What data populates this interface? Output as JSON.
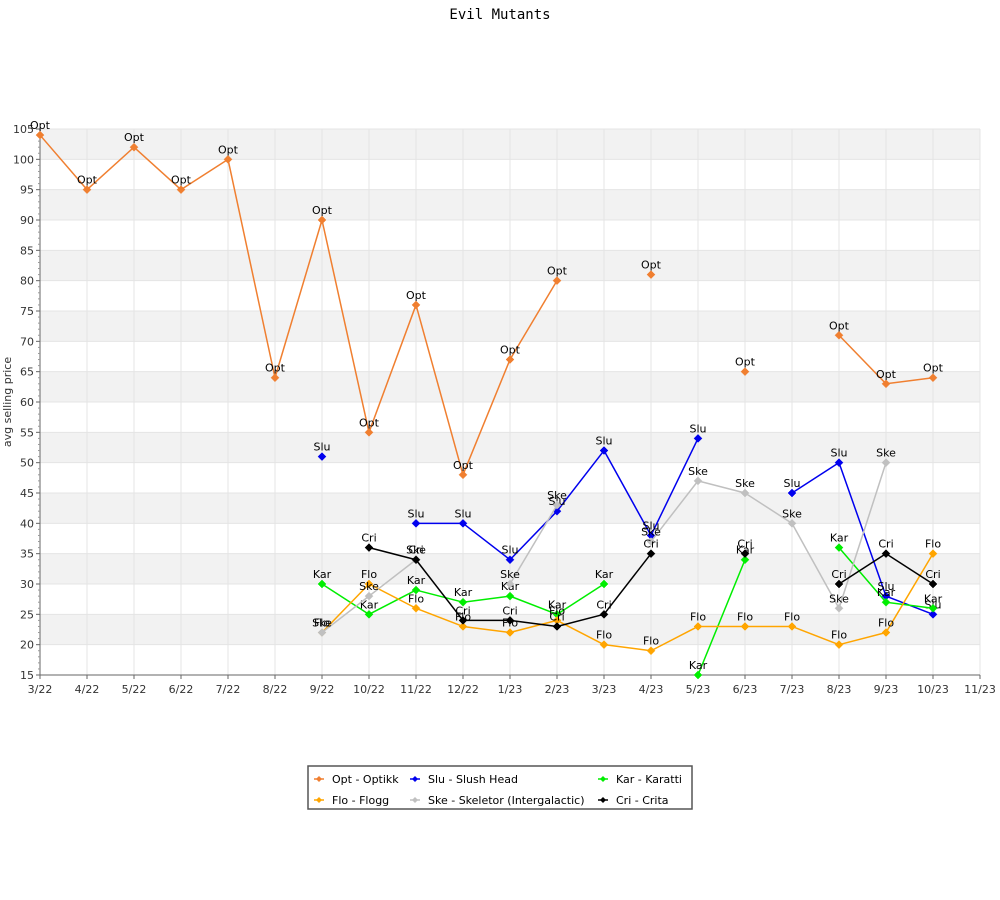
{
  "chart_data": {
    "type": "line",
    "title": "Evil Mutants",
    "xlabel": "",
    "ylabel": "avg selling price",
    "ylim": [
      15,
      105
    ],
    "ytick_step": 5,
    "grid": true,
    "legend_position": "bottom-center",
    "categories": [
      "3/22",
      "4/22",
      "5/22",
      "6/22",
      "7/22",
      "8/22",
      "9/22",
      "10/22",
      "11/22",
      "12/22",
      "1/23",
      "2/23",
      "3/23",
      "4/23",
      "5/23",
      "6/23",
      "7/23",
      "8/23",
      "9/23",
      "10/23",
      "11/23"
    ],
    "series": [
      {
        "name": "Opt - Optikk",
        "short": "Opt",
        "color": "#f07f30",
        "values": [
          104,
          95,
          102,
          95,
          100,
          64,
          90,
          55,
          76,
          48,
          67,
          80,
          null,
          81,
          null,
          65,
          null,
          71,
          63,
          64,
          null
        ]
      },
      {
        "name": "Slu - Slush Head",
        "short": "Slu",
        "color": "#0000ee",
        "values": [
          null,
          null,
          null,
          null,
          null,
          null,
          51,
          null,
          40,
          40,
          34,
          42,
          52,
          38,
          54,
          null,
          45,
          50,
          28,
          25,
          null
        ]
      },
      {
        "name": "Kar - Karatti",
        "short": "Kar",
        "color": "#00ee00",
        "values": [
          null,
          null,
          null,
          null,
          null,
          null,
          30,
          25,
          29,
          27,
          28,
          25,
          30,
          null,
          15,
          34,
          null,
          36,
          27,
          26,
          null
        ]
      },
      {
        "name": "Flo - Flogg",
        "short": "Flo",
        "color": "#ffa500",
        "values": [
          null,
          null,
          null,
          null,
          null,
          null,
          22,
          30,
          26,
          23,
          22,
          24,
          20,
          19,
          23,
          23,
          23,
          20,
          22,
          35,
          null
        ]
      },
      {
        "name": "Ske - Skeletor (Intergalactic)",
        "short": "Ske",
        "color": "#c0c0c0",
        "values": [
          null,
          null,
          null,
          null,
          null,
          null,
          22,
          28,
          34,
          null,
          30,
          43,
          null,
          37,
          47,
          45,
          40,
          26,
          50,
          null,
          null
        ]
      },
      {
        "name": "Cri - Crita",
        "short": "Cri",
        "color": "#000000",
        "values": [
          null,
          null,
          null,
          null,
          null,
          null,
          null,
          36,
          34,
          24,
          24,
          23,
          25,
          35,
          null,
          35,
          null,
          30,
          35,
          30,
          null
        ]
      }
    ]
  }
}
